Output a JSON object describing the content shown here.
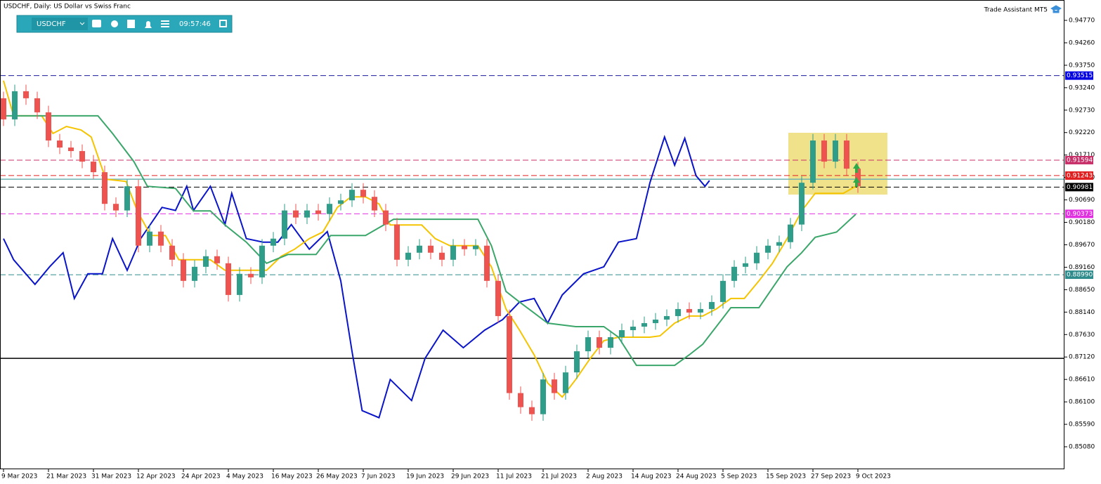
{
  "chart_data": {
    "type": "candlestick",
    "title": "USDCHF, Daily: US Dollar vs Swiss Franc",
    "assistant": "Trade Assistant MT5",
    "toolbar": {
      "symbol": "USDCHF",
      "time": "09:57:46"
    },
    "xlim": [
      -0.3125,
      94.375
    ],
    "ylim": [
      0.84569,
      0.95233
    ],
    "xticks": [
      {
        "value": 0,
        "label": "9 Mar 2023"
      },
      {
        "value": 4,
        "label": "21 Mar 2023"
      },
      {
        "value": 8,
        "label": "31 Mar 2023"
      },
      {
        "value": 12,
        "label": "12 Apr 2023"
      },
      {
        "value": 16,
        "label": "24 Apr 2023"
      },
      {
        "value": 20,
        "label": "4 May 2023"
      },
      {
        "value": 24,
        "label": "16 May 2023"
      },
      {
        "value": 28,
        "label": "26 May 2023"
      },
      {
        "value": 32,
        "label": "7 Jun 2023"
      },
      {
        "value": 36,
        "label": "19 Jun 2023"
      },
      {
        "value": 40,
        "label": "29 Jun 2023"
      },
      {
        "value": 44,
        "label": "11 Jul 2023"
      },
      {
        "value": 48,
        "label": "21 Jul 2023"
      },
      {
        "value": 52,
        "label": "2 Aug 2023"
      },
      {
        "value": 56,
        "label": "14 Aug 2023"
      },
      {
        "value": 60,
        "label": "24 Aug 2023"
      },
      {
        "value": 64,
        "label": "5 Sep 2023"
      },
      {
        "value": 68,
        "label": "15 Sep 2023"
      },
      {
        "value": 72,
        "label": "27 Sep 2023"
      },
      {
        "value": 76,
        "label": "9 Oct 2023"
      }
    ],
    "yticks": [
      {
        "value": 0.9477,
        "label": "0.94770"
      },
      {
        "value": 0.9426,
        "label": "0.94260"
      },
      {
        "value": 0.9375,
        "label": "0.93750"
      },
      {
        "value": 0.9324,
        "label": "0.93240"
      },
      {
        "value": 0.9273,
        "label": "0.92730"
      },
      {
        "value": 0.9222,
        "label": "0.92220"
      },
      {
        "value": 0.9171,
        "label": "0.91710"
      },
      {
        "value": 0.912,
        "label": "0.91200"
      },
      {
        "value": 0.9069,
        "label": "0.90690"
      },
      {
        "value": 0.9018,
        "label": "0.90180"
      },
      {
        "value": 0.8967,
        "label": "0.89670"
      },
      {
        "value": 0.8916,
        "label": "0.89160"
      },
      {
        "value": 0.8865,
        "label": "0.88650"
      },
      {
        "value": 0.8814,
        "label": "0.88140"
      },
      {
        "value": 0.8763,
        "label": "0.87630"
      },
      {
        "value": 0.8712,
        "label": "0.87120"
      },
      {
        "value": 0.8661,
        "label": "0.86610"
      },
      {
        "value": 0.861,
        "label": "0.86100"
      },
      {
        "value": 0.8559,
        "label": "0.85590"
      },
      {
        "value": 0.8508,
        "label": "0.85080"
      }
    ],
    "up_color": "#2e9e8a",
    "down_color": "#ef5350",
    "candles": [
      [
        0.93,
        0.9315,
        0.9237,
        0.9252
      ],
      [
        0.9252,
        0.9331,
        0.9237,
        0.9316
      ],
      [
        0.9316,
        0.9331,
        0.9285,
        0.93
      ],
      [
        0.93,
        0.9315,
        0.9253,
        0.9268
      ],
      [
        0.9268,
        0.9283,
        0.9189,
        0.9204
      ],
      [
        0.9204,
        0.9219,
        0.9173,
        0.9188
      ],
      [
        0.9188,
        0.9203,
        0.9165,
        0.918
      ],
      [
        0.918,
        0.9195,
        0.9141,
        0.9156
      ],
      [
        0.9156,
        0.9171,
        0.9117,
        0.9132
      ],
      [
        0.9132,
        0.9147,
        0.9045,
        0.906
      ],
      [
        0.906,
        0.9075,
        0.903,
        0.9045
      ],
      [
        0.9045,
        0.9115,
        0.903,
        0.91
      ],
      [
        0.91,
        0.9115,
        0.895,
        0.8965
      ],
      [
        0.8965,
        0.9012,
        0.895,
        0.8997
      ],
      [
        0.8997,
        0.9012,
        0.895,
        0.8965
      ],
      [
        0.8965,
        0.898,
        0.8918,
        0.8933
      ],
      [
        0.8933,
        0.8948,
        0.887,
        0.8885
      ],
      [
        0.8885,
        0.8932,
        0.887,
        0.8917
      ],
      [
        0.8917,
        0.8956,
        0.8902,
        0.8941
      ],
      [
        0.8941,
        0.8956,
        0.891,
        0.8925
      ],
      [
        0.8925,
        0.894,
        0.8838,
        0.8853
      ],
      [
        0.8853,
        0.8916,
        0.8838,
        0.8901
      ],
      [
        0.8901,
        0.8916,
        0.8878,
        0.8893
      ],
      [
        0.8893,
        0.898,
        0.8878,
        0.8965
      ],
      [
        0.8965,
        0.8996,
        0.895,
        0.8981
      ],
      [
        0.8981,
        0.906,
        0.8966,
        0.9045
      ],
      [
        0.9045,
        0.906,
        0.9014,
        0.9029
      ],
      [
        0.9029,
        0.906,
        0.9014,
        0.9045
      ],
      [
        0.9045,
        0.906,
        0.9022,
        0.9037
      ],
      [
        0.9037,
        0.9075,
        0.9022,
        0.906
      ],
      [
        0.906,
        0.9083,
        0.9045,
        0.9068
      ],
      [
        0.9068,
        0.9107,
        0.9053,
        0.9092
      ],
      [
        0.9092,
        0.9107,
        0.9061,
        0.9076
      ],
      [
        0.9076,
        0.9091,
        0.903,
        0.9045
      ],
      [
        0.9045,
        0.906,
        0.8998,
        0.9013
      ],
      [
        0.9013,
        0.9028,
        0.8918,
        0.8933
      ],
      [
        0.8933,
        0.8964,
        0.8918,
        0.8949
      ],
      [
        0.8949,
        0.898,
        0.8934,
        0.8965
      ],
      [
        0.8965,
        0.898,
        0.8934,
        0.8949
      ],
      [
        0.8949,
        0.8964,
        0.8918,
        0.8933
      ],
      [
        0.8933,
        0.898,
        0.8918,
        0.8965
      ],
      [
        0.8965,
        0.898,
        0.8942,
        0.8957
      ],
      [
        0.8957,
        0.898,
        0.8942,
        0.8965
      ],
      [
        0.8965,
        0.898,
        0.887,
        0.8885
      ],
      [
        0.8885,
        0.89,
        0.879,
        0.8805
      ],
      [
        0.8805,
        0.882,
        0.8615,
        0.863
      ],
      [
        0.863,
        0.8645,
        0.8583,
        0.8598
      ],
      [
        0.8598,
        0.8613,
        0.8567,
        0.8582
      ],
      [
        0.8582,
        0.8676,
        0.8567,
        0.8661
      ],
      [
        0.8661,
        0.8676,
        0.8615,
        0.863
      ],
      [
        0.863,
        0.8692,
        0.8615,
        0.8677
      ],
      [
        0.8677,
        0.874,
        0.8662,
        0.8725
      ],
      [
        0.8725,
        0.8772,
        0.871,
        0.8757
      ],
      [
        0.8757,
        0.8772,
        0.8718,
        0.8733
      ],
      [
        0.8733,
        0.8772,
        0.8718,
        0.8757
      ],
      [
        0.8757,
        0.8788,
        0.8742,
        0.8773
      ],
      [
        0.8773,
        0.8796,
        0.8758,
        0.8781
      ],
      [
        0.8781,
        0.8804,
        0.8766,
        0.8789
      ],
      [
        0.8789,
        0.8812,
        0.8774,
        0.8797
      ],
      [
        0.8797,
        0.882,
        0.8782,
        0.8805
      ],
      [
        0.8805,
        0.8836,
        0.879,
        0.8821
      ],
      [
        0.8821,
        0.8836,
        0.8798,
        0.8813
      ],
      [
        0.8813,
        0.8836,
        0.8798,
        0.8821
      ],
      [
        0.8821,
        0.8852,
        0.8806,
        0.8837
      ],
      [
        0.8837,
        0.89,
        0.8822,
        0.8885
      ],
      [
        0.8885,
        0.8932,
        0.887,
        0.8917
      ],
      [
        0.8917,
        0.894,
        0.8902,
        0.8925
      ],
      [
        0.8925,
        0.8964,
        0.891,
        0.8949
      ],
      [
        0.8949,
        0.898,
        0.8934,
        0.8965
      ],
      [
        0.8965,
        0.8988,
        0.895,
        0.8973
      ],
      [
        0.8973,
        0.9028,
        0.8958,
        0.9013
      ],
      [
        0.9013,
        0.9123,
        0.8998,
        0.9108
      ],
      [
        0.9108,
        0.9219,
        0.9093,
        0.9204
      ],
      [
        0.9204,
        0.9219,
        0.9141,
        0.9156
      ],
      [
        0.9156,
        0.9219,
        0.9141,
        0.9204
      ],
      [
        0.9204,
        0.9219,
        0.9125,
        0.914
      ],
      [
        0.914,
        0.9155,
        0.9085,
        0.91
      ]
    ],
    "lines": [
      {
        "color": "#0a14c8",
        "x": [
          0,
          0.9,
          2.8,
          4.1,
          5.3,
          6.3,
          7.5,
          8.8,
          9.7,
          11,
          12.2,
          14.1,
          15.3,
          16.3,
          16.9,
          18.4,
          19.7,
          20.3,
          21.6,
          23.1,
          24.4,
          25.6,
          27.2,
          28.8,
          30,
          31,
          31.9,
          33.4,
          34.4,
          36.3,
          37.5,
          39.1,
          40.9,
          42.8,
          44.4,
          45.9,
          47.2,
          48.4,
          49.7,
          51.6,
          53.4,
          54.7,
          56.3,
          57.5,
          58.8,
          59.7,
          60.6,
          61.6,
          62.4,
          62.8
        ],
        "values": [
          0.8981,
          0.8933,
          0.8877,
          0.8917,
          0.8949,
          0.8845,
          0.8901,
          0.8901,
          0.8981,
          0.8909,
          0.8981,
          0.9052,
          0.9045,
          0.91,
          0.9045,
          0.91,
          0.9013,
          0.9084,
          0.8981,
          0.8973,
          0.8973,
          0.9013,
          0.8957,
          0.8997,
          0.8885,
          0.8725,
          0.859,
          0.8574,
          0.8661,
          0.8613,
          0.8709,
          0.8773,
          0.8733,
          0.8773,
          0.8797,
          0.8837,
          0.8845,
          0.8789,
          0.8853,
          0.8901,
          0.8917,
          0.8973,
          0.8981,
          0.9108,
          0.9212,
          0.9148,
          0.9209,
          0.9124,
          0.91,
          0.9113
        ]
      },
      {
        "color": "#f5c400",
        "x": [
          0,
          0.9,
          3.4,
          4.4,
          5.6,
          6.9,
          7.8,
          9.1,
          10.9,
          11.9,
          13.1,
          14.4,
          15.6,
          16.9,
          18.4,
          19.7,
          21.6,
          23.4,
          24.7,
          25.9,
          27.2,
          28.4,
          29.7,
          30.9,
          32.2,
          33.4,
          34.4,
          35.6,
          37.2,
          38.4,
          39.7,
          41,
          42.2,
          43.4,
          44.7,
          45.9,
          47.2,
          48.4,
          49.7,
          50.9,
          52.2,
          53.4,
          54.7,
          56.3,
          57.5,
          58.4,
          59.7,
          61,
          62.2,
          63.4,
          64.7,
          65.9,
          67.2,
          68.4,
          69.7,
          71,
          72.2,
          73.4,
          74.7,
          75.8
        ],
        "values": [
          0.934,
          0.926,
          0.926,
          0.922,
          0.9236,
          0.9228,
          0.9212,
          0.9116,
          0.9111,
          0.9044,
          0.8988,
          0.8988,
          0.8933,
          0.8933,
          0.8933,
          0.8909,
          0.8909,
          0.8909,
          0.8941,
          0.8957,
          0.8981,
          0.8996,
          0.9052,
          0.9076,
          0.9076,
          0.906,
          0.9012,
          0.9012,
          0.9012,
          0.8981,
          0.8965,
          0.8965,
          0.8965,
          0.8917,
          0.8821,
          0.8773,
          0.8717,
          0.8653,
          0.8621,
          0.8661,
          0.8709,
          0.8749,
          0.8757,
          0.8757,
          0.8757,
          0.876,
          0.8789,
          0.8805,
          0.8805,
          0.8821,
          0.8845,
          0.8845,
          0.8885,
          0.8925,
          0.8981,
          0.9044,
          0.9084,
          0.9084,
          0.9084,
          0.91
        ]
      },
      {
        "color": "#3aa66a",
        "x": [
          0,
          8.4,
          9.7,
          11.6,
          12.8,
          15.3,
          16.9,
          18.4,
          19.7,
          21.6,
          23.4,
          25.3,
          27.8,
          29.1,
          32.2,
          34.7,
          37.2,
          39.7,
          42.2,
          43.4,
          44.7,
          45.9,
          48.4,
          50.9,
          53.4,
          54.7,
          56.3,
          59.7,
          61,
          62.2,
          64.7,
          67.2,
          68.4,
          69.7,
          71,
          72.2,
          74.1,
          75.8
        ],
        "values": [
          0.926,
          0.926,
          0.922,
          0.9156,
          0.91,
          0.9095,
          0.9044,
          0.9044,
          0.9012,
          0.8973,
          0.8925,
          0.8945,
          0.8945,
          0.8988,
          0.8988,
          0.9025,
          0.9025,
          0.9025,
          0.9025,
          0.8965,
          0.8861,
          0.8837,
          0.8789,
          0.8781,
          0.8781,
          0.8757,
          0.8693,
          0.8693,
          0.8717,
          0.8741,
          0.8824,
          0.8824,
          0.8869,
          0.8917,
          0.8949,
          0.8984,
          0.8996,
          0.9036
        ]
      }
    ],
    "levels": [
      {
        "value": 0.93515,
        "label": "0.93515",
        "color": "#1a1a9c",
        "label_color": "#0000e0",
        "style": "dash"
      },
      {
        "value": 0.91594,
        "label": "0.91594",
        "color": "#c8306a",
        "label_color": "#c8306a",
        "style": "dash"
      },
      {
        "value": 0.91243,
        "label": "0.91243",
        "color": "#e02020",
        "label_color": "#e02020",
        "style": "dash"
      },
      {
        "value": 0.9116,
        "color": "#6fb3b3",
        "style": "solid"
      },
      {
        "value": 0.90981,
        "label": "0.90981",
        "color": "#000000",
        "label_color": "#000000",
        "style": "dash"
      },
      {
        "value": 0.90373,
        "label": "0.90373",
        "color": "#e030e0",
        "label_color": "#e030e0",
        "style": "dash"
      },
      {
        "value": 0.8899,
        "label": "0.88990",
        "color": "#2e8b8b",
        "label_color": "#2e8b8b",
        "style": "dash"
      },
      {
        "value": 0.8709,
        "color": "#000000",
        "style": "solid"
      }
    ]
  }
}
